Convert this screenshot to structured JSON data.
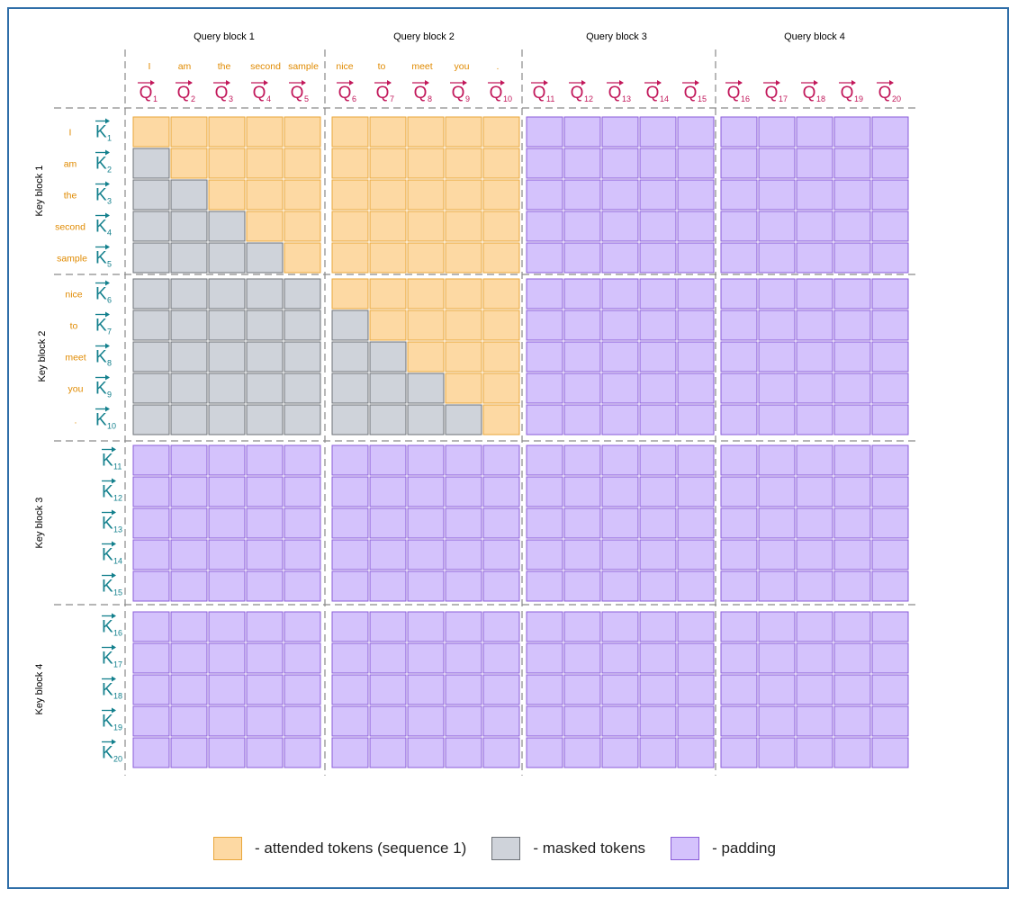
{
  "query_blocks": [
    "Query block 1",
    "Query block 2",
    "Query block 3",
    "Query block 4"
  ],
  "key_blocks": [
    "Key block 1",
    "Key block 2",
    "Key block 3",
    "Key block 4"
  ],
  "tokens": [
    "I",
    "am",
    "the",
    "second",
    "sample",
    "nice",
    "to",
    "meet",
    "you",
    "."
  ],
  "query_symbol": "Q",
  "key_symbol": "K",
  "vector_count": 20,
  "legend": [
    {
      "key": "attended",
      "label": "- attended tokens (sequence 1)"
    },
    {
      "key": "masked",
      "label": "- masked tokens"
    },
    {
      "key": "padding",
      "label": "- padding"
    }
  ],
  "colors": {
    "attended_fill": "#fdd9a3",
    "attended_stroke": "#e9a63a",
    "masked_fill": "#cfd3da",
    "masked_stroke": "#6d7177",
    "padding_fill": "#d4c2fc",
    "padding_stroke": "#8a5cd8",
    "query_vector": "#c2185b",
    "key_vector": "#13808d",
    "token_text": "#e08a00",
    "frame_border": "#2f6ea8"
  }
}
